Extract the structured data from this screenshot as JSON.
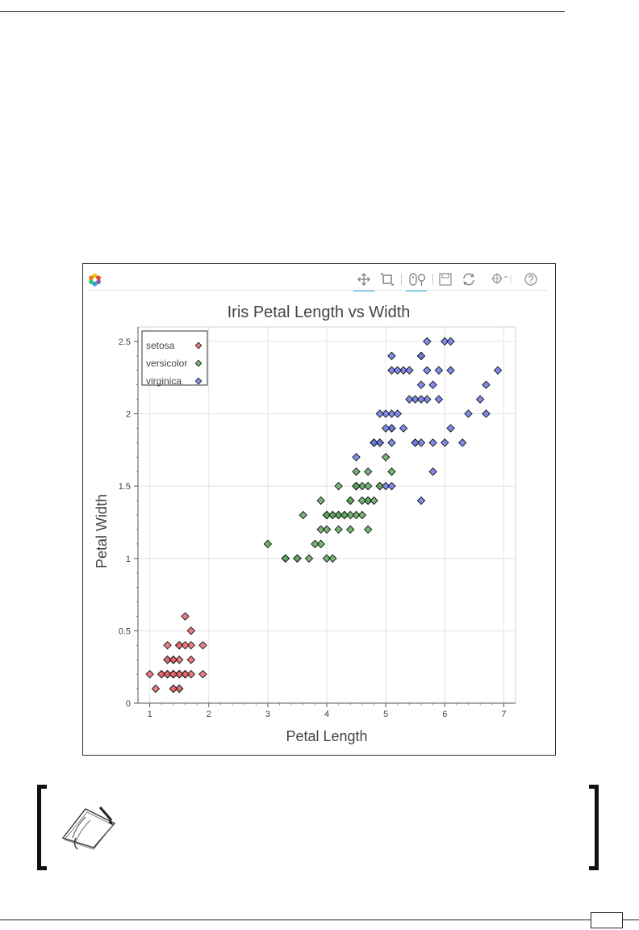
{
  "toolbar": {
    "tools": [
      {
        "icon": "pan-icon"
      },
      {
        "icon": "box-zoom-icon"
      },
      {
        "icon": "wheel-zoom-icon"
      },
      {
        "icon": "save-icon"
      },
      {
        "icon": "reset-icon"
      },
      {
        "icon": "resize-icon"
      },
      {
        "icon": "help-icon"
      }
    ]
  },
  "chart_data": {
    "type": "scatter",
    "title": "Iris Petal Length vs Width",
    "xlabel": "Petal Length",
    "ylabel": "Petal Width",
    "xlim": [
      0.8,
      7.2
    ],
    "ylim": [
      0,
      2.6
    ],
    "xticks": [
      "1",
      "2",
      "3",
      "4",
      "5",
      "6",
      "7"
    ],
    "yticks": [
      "0",
      "0.5",
      "1",
      "1.5",
      "2",
      "2.5"
    ],
    "grid": true,
    "legend_position": "top-left",
    "marker": "diamond",
    "series": [
      {
        "name": "setosa",
        "color": "#e8666e",
        "points": [
          [
            1.4,
            0.2
          ],
          [
            1.4,
            0.2
          ],
          [
            1.3,
            0.2
          ],
          [
            1.5,
            0.2
          ],
          [
            1.4,
            0.2
          ],
          [
            1.7,
            0.4
          ],
          [
            1.4,
            0.3
          ],
          [
            1.5,
            0.2
          ],
          [
            1.4,
            0.2
          ],
          [
            1.5,
            0.1
          ],
          [
            1.5,
            0.2
          ],
          [
            1.6,
            0.2
          ],
          [
            1.4,
            0.1
          ],
          [
            1.1,
            0.1
          ],
          [
            1.2,
            0.2
          ],
          [
            1.5,
            0.4
          ],
          [
            1.3,
            0.4
          ],
          [
            1.4,
            0.3
          ],
          [
            1.7,
            0.3
          ],
          [
            1.5,
            0.3
          ],
          [
            1.7,
            0.2
          ],
          [
            1.5,
            0.4
          ],
          [
            1.0,
            0.2
          ],
          [
            1.7,
            0.5
          ],
          [
            1.9,
            0.2
          ],
          [
            1.6,
            0.2
          ],
          [
            1.6,
            0.4
          ],
          [
            1.5,
            0.2
          ],
          [
            1.4,
            0.2
          ],
          [
            1.6,
            0.2
          ],
          [
            1.6,
            0.2
          ],
          [
            1.5,
            0.4
          ],
          [
            1.5,
            0.1
          ],
          [
            1.4,
            0.2
          ],
          [
            1.5,
            0.2
          ],
          [
            1.2,
            0.2
          ],
          [
            1.3,
            0.2
          ],
          [
            1.4,
            0.1
          ],
          [
            1.3,
            0.2
          ],
          [
            1.5,
            0.2
          ],
          [
            1.3,
            0.3
          ],
          [
            1.3,
            0.3
          ],
          [
            1.3,
            0.2
          ],
          [
            1.6,
            0.6
          ],
          [
            1.9,
            0.4
          ],
          [
            1.4,
            0.3
          ],
          [
            1.6,
            0.2
          ],
          [
            1.4,
            0.2
          ],
          [
            1.5,
            0.2
          ],
          [
            1.4,
            0.2
          ]
        ]
      },
      {
        "name": "versicolor",
        "color": "#5ea85e",
        "points": [
          [
            4.7,
            1.4
          ],
          [
            4.5,
            1.5
          ],
          [
            4.9,
            1.5
          ],
          [
            4.0,
            1.3
          ],
          [
            4.6,
            1.5
          ],
          [
            4.5,
            1.3
          ],
          [
            4.7,
            1.6
          ],
          [
            3.3,
            1.0
          ],
          [
            4.6,
            1.3
          ],
          [
            3.9,
            1.4
          ],
          [
            3.5,
            1.0
          ],
          [
            4.2,
            1.5
          ],
          [
            4.0,
            1.0
          ],
          [
            4.7,
            1.4
          ],
          [
            3.6,
            1.3
          ],
          [
            4.4,
            1.4
          ],
          [
            4.5,
            1.5
          ],
          [
            4.1,
            1.0
          ],
          [
            4.5,
            1.5
          ],
          [
            3.9,
            1.1
          ],
          [
            4.8,
            1.8
          ],
          [
            4.0,
            1.3
          ],
          [
            4.9,
            1.5
          ],
          [
            4.7,
            1.2
          ],
          [
            4.3,
            1.3
          ],
          [
            4.4,
            1.4
          ],
          [
            4.8,
            1.4
          ],
          [
            5.0,
            1.7
          ],
          [
            4.5,
            1.5
          ],
          [
            3.5,
            1.0
          ],
          [
            3.8,
            1.1
          ],
          [
            3.7,
            1.0
          ],
          [
            3.9,
            1.2
          ],
          [
            5.1,
            1.6
          ],
          [
            4.5,
            1.5
          ],
          [
            4.5,
            1.6
          ],
          [
            4.7,
            1.5
          ],
          [
            4.4,
            1.3
          ],
          [
            4.1,
            1.3
          ],
          [
            4.0,
            1.3
          ],
          [
            4.4,
            1.2
          ],
          [
            4.6,
            1.4
          ],
          [
            4.0,
            1.2
          ],
          [
            3.3,
            1.0
          ],
          [
            4.2,
            1.3
          ],
          [
            4.2,
            1.2
          ],
          [
            4.2,
            1.3
          ],
          [
            4.3,
            1.3
          ],
          [
            3.0,
            1.1
          ],
          [
            4.1,
            1.3
          ]
        ]
      },
      {
        "name": "virginica",
        "color": "#6b78e6",
        "points": [
          [
            6.0,
            2.5
          ],
          [
            5.1,
            1.9
          ],
          [
            5.9,
            2.1
          ],
          [
            5.6,
            1.8
          ],
          [
            5.8,
            2.2
          ],
          [
            6.6,
            2.1
          ],
          [
            4.5,
            1.7
          ],
          [
            6.3,
            1.8
          ],
          [
            5.8,
            1.8
          ],
          [
            6.1,
            2.5
          ],
          [
            5.1,
            2.0
          ],
          [
            5.3,
            1.9
          ],
          [
            5.5,
            2.1
          ],
          [
            5.0,
            2.0
          ],
          [
            5.1,
            2.4
          ],
          [
            5.3,
            2.3
          ],
          [
            5.5,
            1.8
          ],
          [
            6.7,
            2.2
          ],
          [
            6.9,
            2.3
          ],
          [
            5.0,
            1.5
          ],
          [
            5.7,
            2.3
          ],
          [
            4.9,
            2.0
          ],
          [
            6.7,
            2.0
          ],
          [
            4.9,
            1.8
          ],
          [
            5.7,
            2.1
          ],
          [
            6.0,
            1.8
          ],
          [
            4.8,
            1.8
          ],
          [
            4.9,
            1.8
          ],
          [
            5.6,
            2.1
          ],
          [
            5.8,
            1.6
          ],
          [
            6.1,
            1.9
          ],
          [
            6.4,
            2.0
          ],
          [
            5.6,
            2.2
          ],
          [
            5.1,
            1.5
          ],
          [
            5.6,
            1.4
          ],
          [
            6.1,
            2.3
          ],
          [
            5.6,
            2.4
          ],
          [
            5.5,
            1.8
          ],
          [
            4.8,
            1.8
          ],
          [
            5.4,
            2.1
          ],
          [
            5.6,
            2.4
          ],
          [
            5.1,
            2.3
          ],
          [
            5.1,
            1.9
          ],
          [
            5.9,
            2.3
          ],
          [
            5.7,
            2.5
          ],
          [
            5.2,
            2.3
          ],
          [
            5.0,
            1.9
          ],
          [
            5.2,
            2.0
          ],
          [
            5.4,
            2.3
          ],
          [
            5.1,
            1.8
          ]
        ]
      }
    ]
  }
}
